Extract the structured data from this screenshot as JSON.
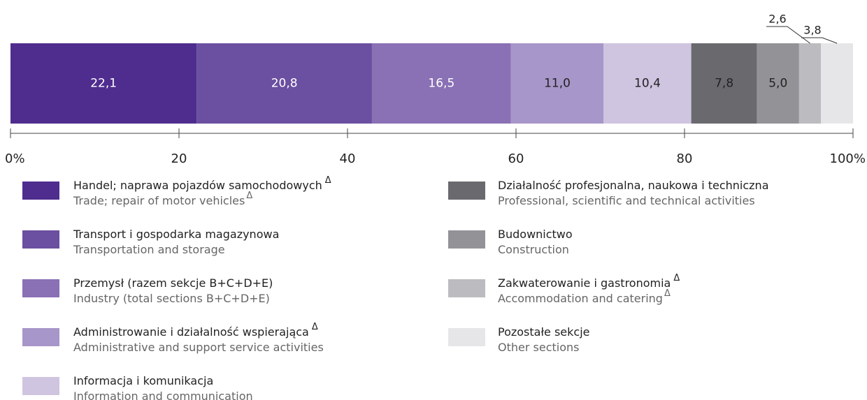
{
  "chart_data": {
    "type": "stacked_bar_100",
    "xlim": [
      0,
      100
    ],
    "xticks": [
      {
        "value": 0,
        "label": "0%"
      },
      20,
      40,
      60,
      80,
      {
        "value": 100,
        "label": "100%"
      }
    ],
    "series": [
      {
        "name": "Handel; naprawa pojazdów samochodowych",
        "name_mark": "Δ",
        "name_en": "Trade; repair of motor vehicles",
        "name_en_mark": "Δ",
        "color": "#4f2d8f",
        "values": [
          22.1
        ],
        "value_labels": [
          "22,1"
        ]
      },
      {
        "name": "Transport i gospodarka magazynowa",
        "name_en": "Transportation and storage",
        "color": "#6b4fa0",
        "values": [
          20.8
        ],
        "value_labels": [
          "20,8"
        ]
      },
      {
        "name": "Przemysł (razem sekcje B+C+D+E)",
        "name_en": "Industry (total sections B+C+D+E)",
        "color": "#8a70b4",
        "values": [
          16.5
        ],
        "value_labels": [
          "16,5"
        ]
      },
      {
        "name": "Administrowanie i działalność wspierająca",
        "name_mark": "Δ",
        "name_en": "Administrative and support service activities",
        "color": "#a796c9",
        "values": [
          11.0
        ],
        "value_labels": [
          "11,0"
        ]
      },
      {
        "name": "Informacja i komunikacja",
        "name_en": "Information and communication",
        "color": "#cfc5e0",
        "values": [
          10.4
        ],
        "value_labels": [
          "10,4"
        ]
      },
      {
        "name": "Działalność profesjonalna, naukowa i techniczna",
        "name_en": "Professional, scientific and technical activities",
        "color": "#6a6a6e",
        "values": [
          7.8
        ],
        "value_labels": [
          "7,8"
        ]
      },
      {
        "name": "Budownictwo",
        "name_en": "Construction",
        "color": "#939397",
        "values": [
          5.0
        ],
        "value_labels": [
          "5,0"
        ]
      },
      {
        "name": "Zakwaterowanie i gastronomia",
        "name_mark": "Δ",
        "name_en": "Accommodation and catering",
        "name_en_mark": "Δ",
        "color": "#bcbcc0",
        "values": [
          2.6
        ],
        "value_labels": [
          "2,6"
        ]
      },
      {
        "name": "Pozostałe sekcje",
        "name_en": "Other sections",
        "color": "#e6e6e8",
        "values": [
          3.8
        ],
        "value_labels": [
          "3,8"
        ]
      }
    ]
  }
}
